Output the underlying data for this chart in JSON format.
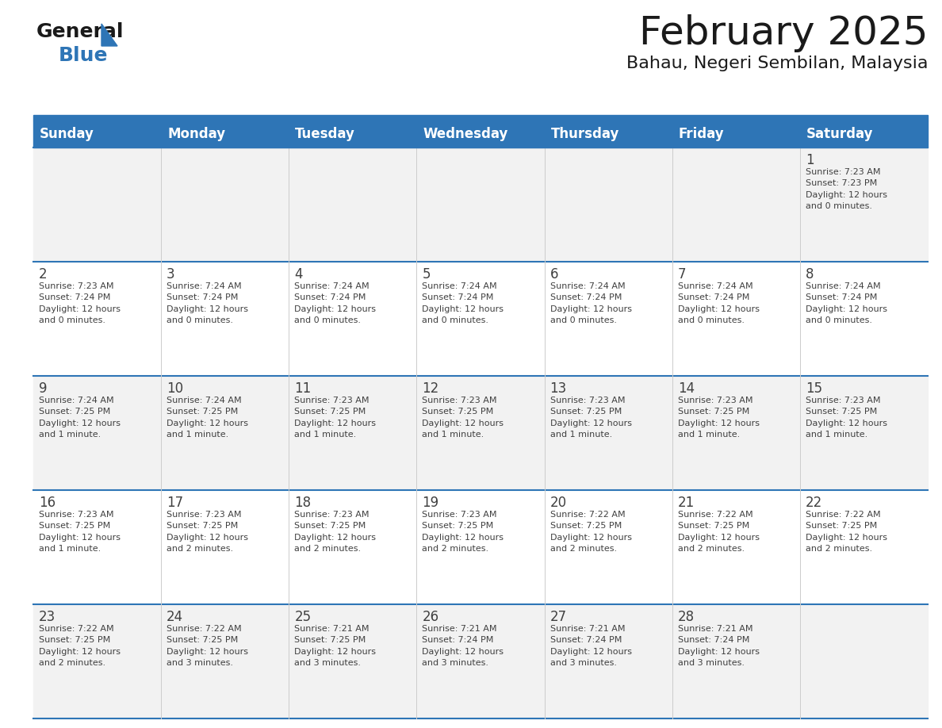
{
  "title": "February 2025",
  "subtitle": "Bahau, Negeri Sembilan, Malaysia",
  "header_color": "#2E75B6",
  "header_text_color": "#FFFFFF",
  "grid_line_color": "#2E75B6",
  "day_names": [
    "Sunday",
    "Monday",
    "Tuesday",
    "Wednesday",
    "Thursday",
    "Friday",
    "Saturday"
  ],
  "background_color": "#FFFFFF",
  "cell_bg_white": "#FFFFFF",
  "cell_bg_gray": "#F2F2F2",
  "text_color": "#404040",
  "day_num_color": "#404040",
  "logo_text_general": "General",
  "logo_text_blue": "Blue",
  "logo_general_color": "#1A1A1A",
  "logo_blue_color": "#2E75B6",
  "title_fontsize": 36,
  "subtitle_fontsize": 16,
  "header_fontsize": 12,
  "day_num_fontsize": 12,
  "info_fontsize": 8,
  "weeks": [
    [
      {
        "day": null,
        "info": null
      },
      {
        "day": null,
        "info": null
      },
      {
        "day": null,
        "info": null
      },
      {
        "day": null,
        "info": null
      },
      {
        "day": null,
        "info": null
      },
      {
        "day": null,
        "info": null
      },
      {
        "day": 1,
        "info": "Sunrise: 7:23 AM\nSunset: 7:23 PM\nDaylight: 12 hours\nand 0 minutes."
      }
    ],
    [
      {
        "day": 2,
        "info": "Sunrise: 7:23 AM\nSunset: 7:24 PM\nDaylight: 12 hours\nand 0 minutes."
      },
      {
        "day": 3,
        "info": "Sunrise: 7:24 AM\nSunset: 7:24 PM\nDaylight: 12 hours\nand 0 minutes."
      },
      {
        "day": 4,
        "info": "Sunrise: 7:24 AM\nSunset: 7:24 PM\nDaylight: 12 hours\nand 0 minutes."
      },
      {
        "day": 5,
        "info": "Sunrise: 7:24 AM\nSunset: 7:24 PM\nDaylight: 12 hours\nand 0 minutes."
      },
      {
        "day": 6,
        "info": "Sunrise: 7:24 AM\nSunset: 7:24 PM\nDaylight: 12 hours\nand 0 minutes."
      },
      {
        "day": 7,
        "info": "Sunrise: 7:24 AM\nSunset: 7:24 PM\nDaylight: 12 hours\nand 0 minutes."
      },
      {
        "day": 8,
        "info": "Sunrise: 7:24 AM\nSunset: 7:24 PM\nDaylight: 12 hours\nand 0 minutes."
      }
    ],
    [
      {
        "day": 9,
        "info": "Sunrise: 7:24 AM\nSunset: 7:25 PM\nDaylight: 12 hours\nand 1 minute."
      },
      {
        "day": 10,
        "info": "Sunrise: 7:24 AM\nSunset: 7:25 PM\nDaylight: 12 hours\nand 1 minute."
      },
      {
        "day": 11,
        "info": "Sunrise: 7:23 AM\nSunset: 7:25 PM\nDaylight: 12 hours\nand 1 minute."
      },
      {
        "day": 12,
        "info": "Sunrise: 7:23 AM\nSunset: 7:25 PM\nDaylight: 12 hours\nand 1 minute."
      },
      {
        "day": 13,
        "info": "Sunrise: 7:23 AM\nSunset: 7:25 PM\nDaylight: 12 hours\nand 1 minute."
      },
      {
        "day": 14,
        "info": "Sunrise: 7:23 AM\nSunset: 7:25 PM\nDaylight: 12 hours\nand 1 minute."
      },
      {
        "day": 15,
        "info": "Sunrise: 7:23 AM\nSunset: 7:25 PM\nDaylight: 12 hours\nand 1 minute."
      }
    ],
    [
      {
        "day": 16,
        "info": "Sunrise: 7:23 AM\nSunset: 7:25 PM\nDaylight: 12 hours\nand 1 minute."
      },
      {
        "day": 17,
        "info": "Sunrise: 7:23 AM\nSunset: 7:25 PM\nDaylight: 12 hours\nand 2 minutes."
      },
      {
        "day": 18,
        "info": "Sunrise: 7:23 AM\nSunset: 7:25 PM\nDaylight: 12 hours\nand 2 minutes."
      },
      {
        "day": 19,
        "info": "Sunrise: 7:23 AM\nSunset: 7:25 PM\nDaylight: 12 hours\nand 2 minutes."
      },
      {
        "day": 20,
        "info": "Sunrise: 7:22 AM\nSunset: 7:25 PM\nDaylight: 12 hours\nand 2 minutes."
      },
      {
        "day": 21,
        "info": "Sunrise: 7:22 AM\nSunset: 7:25 PM\nDaylight: 12 hours\nand 2 minutes."
      },
      {
        "day": 22,
        "info": "Sunrise: 7:22 AM\nSunset: 7:25 PM\nDaylight: 12 hours\nand 2 minutes."
      }
    ],
    [
      {
        "day": 23,
        "info": "Sunrise: 7:22 AM\nSunset: 7:25 PM\nDaylight: 12 hours\nand 2 minutes."
      },
      {
        "day": 24,
        "info": "Sunrise: 7:22 AM\nSunset: 7:25 PM\nDaylight: 12 hours\nand 3 minutes."
      },
      {
        "day": 25,
        "info": "Sunrise: 7:21 AM\nSunset: 7:25 PM\nDaylight: 12 hours\nand 3 minutes."
      },
      {
        "day": 26,
        "info": "Sunrise: 7:21 AM\nSunset: 7:24 PM\nDaylight: 12 hours\nand 3 minutes."
      },
      {
        "day": 27,
        "info": "Sunrise: 7:21 AM\nSunset: 7:24 PM\nDaylight: 12 hours\nand 3 minutes."
      },
      {
        "day": 28,
        "info": "Sunrise: 7:21 AM\nSunset: 7:24 PM\nDaylight: 12 hours\nand 3 minutes."
      },
      {
        "day": null,
        "info": null
      }
    ]
  ]
}
